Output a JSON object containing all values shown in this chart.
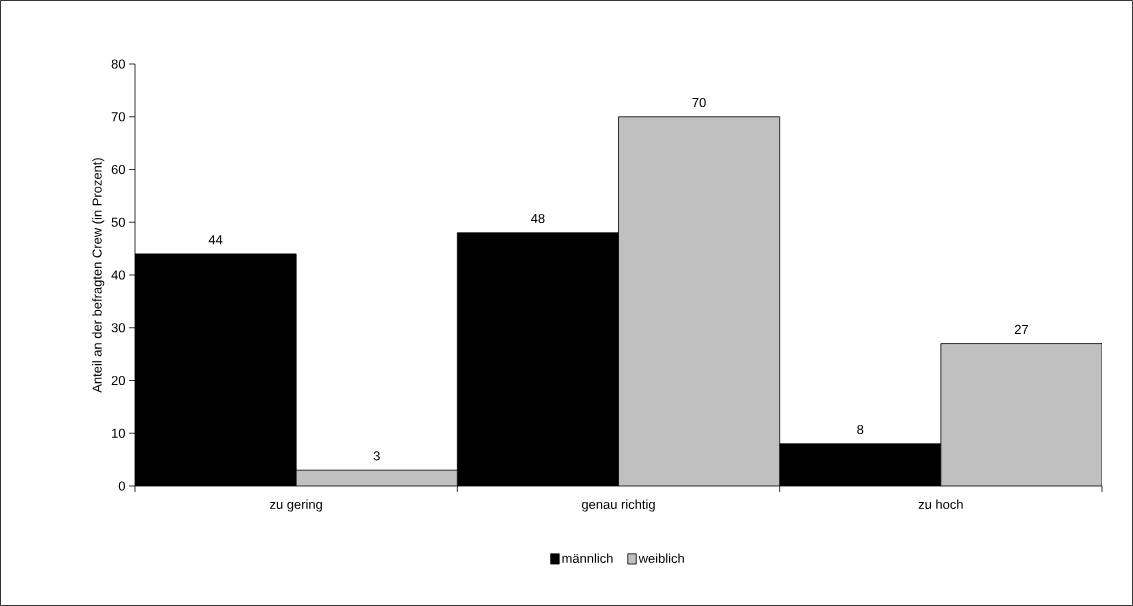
{
  "chart_data": {
    "type": "bar",
    "ylabel": "Anteil an der befragten Crew (in Prozent)",
    "categories": [
      "zu gering",
      "genau richtig",
      "zu hoch"
    ],
    "series": [
      {
        "name": "männlich",
        "color": "#000000",
        "values": [
          44,
          48,
          8
        ]
      },
      {
        "name": "weiblich",
        "color": "#c0c0c0",
        "values": [
          3,
          70,
          27
        ]
      }
    ],
    "ylim": [
      0,
      80
    ],
    "yticks": [
      0,
      10,
      20,
      30,
      40,
      50,
      60,
      70,
      80
    ],
    "data_labels": true,
    "legend": "bottom",
    "grid": false
  }
}
